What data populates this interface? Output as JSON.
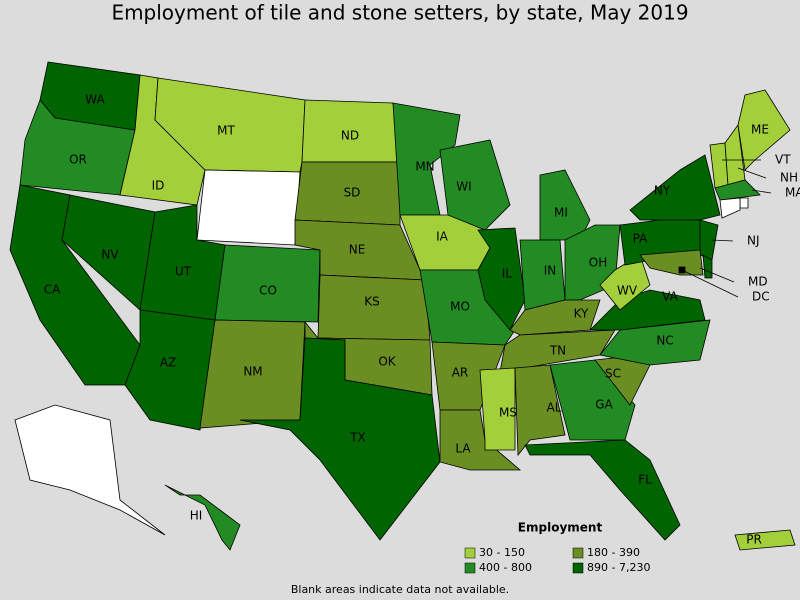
{
  "title": "Employment of tile and stone setters, by state, May 2019",
  "legend": {
    "title": "Employment",
    "items": [
      {
        "label": "30 - 150",
        "color": "#a2cf3a"
      },
      {
        "label": "180 - 390",
        "color": "#6b8e23"
      },
      {
        "label": "400 - 800",
        "color": "#238b23"
      },
      {
        "label": "890 - 7,230",
        "color": "#006400"
      }
    ]
  },
  "note": "Blank areas indicate data not available.",
  "states": [
    {
      "abbr": "WA",
      "color": "#006400"
    },
    {
      "abbr": "OR",
      "color": "#238b23"
    },
    {
      "abbr": "CA",
      "color": "#006400"
    },
    {
      "abbr": "NV",
      "color": "#006400"
    },
    {
      "abbr": "ID",
      "color": "#a2cf3a"
    },
    {
      "abbr": "MT",
      "color": "#a2cf3a"
    },
    {
      "abbr": null,
      "color": "#ffffff"
    },
    {
      "abbr": "UT",
      "color": "#006400"
    },
    {
      "abbr": "AZ",
      "color": "#006400"
    },
    {
      "abbr": "CO",
      "color": "#238b23"
    },
    {
      "abbr": "NM",
      "color": "#6b8e23"
    },
    {
      "abbr": "ND",
      "color": "#a2cf3a"
    },
    {
      "abbr": "SD",
      "color": "#6b8e23"
    },
    {
      "abbr": "NE",
      "color": "#6b8e23"
    },
    {
      "abbr": "KS",
      "color": "#6b8e23"
    },
    {
      "abbr": "OK",
      "color": "#6b8e23"
    },
    {
      "abbr": "TX",
      "color": "#006400"
    },
    {
      "abbr": "MN",
      "color": "#238b23"
    },
    {
      "abbr": "IA",
      "color": "#a2cf3a"
    },
    {
      "abbr": "MO",
      "color": "#238b23"
    },
    {
      "abbr": "AR",
      "color": "#6b8e23"
    },
    {
      "abbr": "LA",
      "color": "#6b8e23"
    },
    {
      "abbr": "WI",
      "color": "#238b23"
    },
    {
      "abbr": "IL",
      "color": "#006400"
    },
    {
      "abbr": "MI",
      "color": "#238b23"
    },
    {
      "abbr": "IN",
      "color": "#238b23"
    },
    {
      "abbr": "OH",
      "color": "#238b23"
    },
    {
      "abbr": "KY",
      "color": "#6b8e23"
    },
    {
      "abbr": "TN",
      "color": "#6b8e23"
    },
    {
      "abbr": "MS",
      "color": "#a2cf3a"
    },
    {
      "abbr": "AL",
      "color": "#6b8e23"
    },
    {
      "abbr": "GA",
      "color": "#238b23"
    },
    {
      "abbr": "FL",
      "color": "#006400"
    },
    {
      "abbr": "SC",
      "color": "#6b8e23"
    },
    {
      "abbr": "NC",
      "color": "#238b23"
    },
    {
      "abbr": "VA",
      "color": "#006400"
    },
    {
      "abbr": "WV",
      "color": "#a2cf3a"
    },
    {
      "abbr": "PA",
      "color": "#006400"
    },
    {
      "abbr": "NY",
      "color": "#006400"
    },
    {
      "abbr": "NJ",
      "color": "#006400"
    },
    {
      "abbr": "MD",
      "color": "#6b8e23"
    },
    {
      "abbr": null,
      "color": "#006400"
    },
    {
      "abbr": "DC",
      "color": "#000000"
    },
    {
      "abbr": "VT",
      "color": "#a2cf3a"
    },
    {
      "abbr": "NH",
      "color": "#a2cf3a"
    },
    {
      "abbr": "ME",
      "color": "#a2cf3a"
    },
    {
      "abbr": "MA",
      "color": "#238b23"
    },
    {
      "abbr": null,
      "color": "#ffffff"
    },
    {
      "abbr": null,
      "color": "#ffffff"
    },
    {
      "abbr": null,
      "color": "#ffffff"
    },
    {
      "abbr": "HI",
      "color": "#238b23"
    },
    {
      "abbr": "PR",
      "color": "#a2cf3a"
    }
  ]
}
